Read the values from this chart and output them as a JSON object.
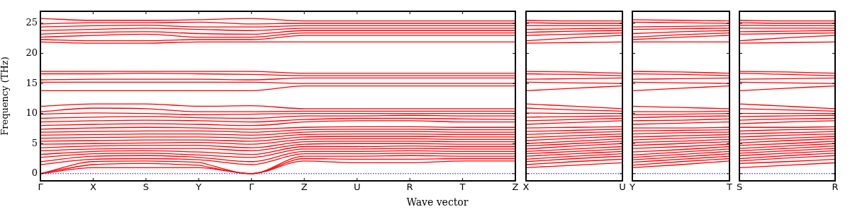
{
  "chart_data": [
    {
      "type": "line",
      "xlabel": "Wave vector",
      "ylabel": "Frequency (THz)",
      "color": "#ff0000",
      "marker": "none",
      "line_style": "solid",
      "grid": false,
      "legend": false,
      "categories": [
        "Γ",
        "X",
        "S",
        "Y",
        "Γ",
        "Z",
        "U",
        "R",
        "T",
        "Z"
      ],
      "ylim": [
        -1.2,
        27
      ],
      "yticks": [
        0,
        5,
        10,
        15,
        20,
        25
      ],
      "ref_lines": [
        {
          "axis": "y",
          "value": 0,
          "color": "#0000ff",
          "line_style": "dotted"
        }
      ],
      "series": [
        {
          "values": [
            0,
            1.0,
            1.0,
            1.0,
            0,
            2.1,
            1.8,
            1.8,
            2.1,
            2.1
          ]
        },
        {
          "values": [
            0,
            1.5,
            1.7,
            1.4,
            null,
            null,
            null,
            null,
            null,
            null
          ]
        },
        {
          "values": [
            null,
            null,
            null,
            1.4,
            0,
            2.5,
            2.4,
            2.4,
            2.5,
            2.5
          ]
        },
        {
          "values": [
            0,
            2.0,
            2.1,
            1.9,
            null,
            null,
            null,
            null,
            null,
            null
          ]
        },
        {
          "values": [
            null,
            null,
            null,
            1.9,
            0,
            2.9,
            2.9,
            3.0,
            2.9,
            2.9
          ]
        },
        {
          "values": [
            1.5,
            2.4,
            2.5,
            2.3,
            1.5,
            3.3,
            3.3,
            3.4,
            3.3,
            3.3
          ]
        },
        {
          "values": [
            2.0,
            2.9,
            3.0,
            2.7,
            2.0,
            3.7,
            3.7,
            3.8,
            3.7,
            3.7
          ]
        },
        {
          "values": [
            2.7,
            3.3,
            3.4,
            3.1,
            2.7,
            4.1,
            4.1,
            4.2,
            4.1,
            4.1
          ]
        },
        {
          "values": [
            3.2,
            3.7,
            3.8,
            3.6,
            3.2,
            4.5,
            4.5,
            4.6,
            4.5,
            4.5
          ]
        },
        {
          "values": [
            3.8,
            4.1,
            4.2,
            4.2,
            3.8,
            4.9,
            5.0,
            5.0,
            4.9,
            4.9
          ]
        },
        {
          "values": [
            4.3,
            4.6,
            4.7,
            4.7,
            4.3,
            5.3,
            5.4,
            5.4,
            5.3,
            5.3
          ]
        },
        {
          "values": [
            4.9,
            5.0,
            5.1,
            5.2,
            4.9,
            5.7,
            5.8,
            5.8,
            5.7,
            5.7
          ]
        },
        {
          "values": [
            5.4,
            5.5,
            5.6,
            5.6,
            5.4,
            6.1,
            6.2,
            6.2,
            6.1,
            6.1
          ]
        },
        {
          "values": [
            5.9,
            6.0,
            6.1,
            6.1,
            5.9,
            6.5,
            6.6,
            6.6,
            6.5,
            6.5
          ]
        },
        {
          "values": [
            6.4,
            6.5,
            6.6,
            6.6,
            6.4,
            6.9,
            7.0,
            7.0,
            6.9,
            6.9
          ]
        },
        {
          "values": [
            6.9,
            7.0,
            7.1,
            7.1,
            6.9,
            7.3,
            7.4,
            7.4,
            7.3,
            7.3
          ]
        },
        {
          "values": [
            7.4,
            7.6,
            7.7,
            7.6,
            7.4,
            7.7,
            7.8,
            7.8,
            7.7,
            7.7
          ]
        },
        {
          "values": [
            8.0,
            8.2,
            8.3,
            8.2,
            8.0,
            8.6,
            8.8,
            8.8,
            8.6,
            8.6
          ]
        },
        {
          "values": [
            8.6,
            8.8,
            8.9,
            8.8,
            8.6,
            9.0,
            9.2,
            9.2,
            9.1,
            9.0
          ]
        },
        {
          "values": [
            9.2,
            9.4,
            9.5,
            9.3,
            9.2,
            9.6,
            9.6,
            9.7,
            9.6,
            9.6
          ]
        },
        {
          "values": [
            9.9,
            10.1,
            10.0,
            9.8,
            9.9,
            10.0,
            10.0,
            10.0,
            10.0,
            10.0
          ]
        },
        {
          "values": [
            10.3,
            10.9,
            10.8,
            10.3,
            10.3,
            10.4,
            10.4,
            10.4,
            10.4,
            10.4
          ]
        },
        {
          "values": [
            11.2,
            11.6,
            11.6,
            11.2,
            11.3,
            10.8,
            10.8,
            10.8,
            10.8,
            10.8
          ]
        },
        {
          "values": [
            13.8,
            13.8,
            13.8,
            13.8,
            13.8,
            14.6,
            14.6,
            14.6,
            14.6,
            14.6
          ]
        },
        {
          "values": [
            15.2,
            15.2,
            15.2,
            15.2,
            15.2,
            15.0,
            15.0,
            15.0,
            15.0,
            15.0
          ]
        },
        {
          "values": [
            15.6,
            15.7,
            15.7,
            15.7,
            15.6,
            15.9,
            15.9,
            15.9,
            15.9,
            15.9
          ]
        },
        {
          "values": [
            16.6,
            16.6,
            16.7,
            16.6,
            16.5,
            16.3,
            16.3,
            16.3,
            16.3,
            16.3
          ]
        },
        {
          "values": [
            17.0,
            17.0,
            17.0,
            17.0,
            17.0,
            16.7,
            16.7,
            16.7,
            16.7,
            16.7
          ]
        },
        {
          "values": [
            21.9,
            21.7,
            21.7,
            21.9,
            21.9,
            21.9,
            21.9,
            21.9,
            21.9,
            21.9
          ]
        },
        {
          "values": [
            22.3,
            22.1,
            22.1,
            22.3,
            22.3,
            23.0,
            23.0,
            23.0,
            23.0,
            23.0
          ]
        },
        {
          "values": [
            22.7,
            23.0,
            23.2,
            22.7,
            22.7,
            23.4,
            23.4,
            23.4,
            23.4,
            23.4
          ]
        },
        {
          "values": [
            23.2,
            23.5,
            23.6,
            23.3,
            23.2,
            23.8,
            23.8,
            23.8,
            23.8,
            23.8
          ]
        },
        {
          "values": [
            23.8,
            24.0,
            24.2,
            24.0,
            23.8,
            24.2,
            24.2,
            24.2,
            24.2,
            24.2
          ]
        },
        {
          "values": [
            24.4,
            24.6,
            24.7,
            24.4,
            24.4,
            24.6,
            24.6,
            24.6,
            24.6,
            24.6
          ]
        },
        {
          "values": [
            24.9,
            25.1,
            25.1,
            25.2,
            24.9,
            25.0,
            25.0,
            25.0,
            25.0,
            25.0
          ]
        },
        {
          "values": [
            25.8,
            25.5,
            25.5,
            25.6,
            25.8,
            25.4,
            25.4,
            25.4,
            25.4,
            25.4
          ]
        }
      ]
    },
    {
      "type": "line",
      "color": "#ff0000",
      "marker": "none",
      "line_style": "solid",
      "grid": false,
      "legend": false,
      "tick_labels": "x",
      "categories": [
        "X",
        null,
        "U"
      ],
      "ylim": [
        -1.2,
        27
      ],
      "yticks": [
        0,
        5,
        10,
        15,
        20,
        25
      ],
      "ref_lines": [
        {
          "axis": "y",
          "value": 0,
          "color": "#0000ff",
          "line_style": "dotted"
        }
      ],
      "series": [
        {
          "values": [
            1.0,
            1.4,
            1.8
          ]
        },
        {
          "values": [
            1.5,
            2.0,
            2.4
          ]
        },
        {
          "values": [
            2.0,
            2.5,
            2.9
          ]
        },
        {
          "values": [
            2.4,
            2.9,
            3.3
          ]
        },
        {
          "values": [
            2.9,
            3.3,
            3.7
          ]
        },
        {
          "values": [
            3.3,
            3.7,
            4.1
          ]
        },
        {
          "values": [
            3.7,
            4.1,
            4.5
          ]
        },
        {
          "values": [
            4.1,
            4.6,
            5.0
          ]
        },
        {
          "values": [
            4.6,
            5.0,
            5.4
          ]
        },
        {
          "values": [
            5.0,
            5.4,
            5.8
          ]
        },
        {
          "values": [
            5.5,
            5.9,
            6.2
          ]
        },
        {
          "values": [
            6.0,
            6.3,
            6.6
          ]
        },
        {
          "values": [
            6.5,
            6.8,
            7.0
          ]
        },
        {
          "values": [
            7.0,
            7.2,
            7.4
          ]
        },
        {
          "values": [
            7.6,
            7.7,
            7.8
          ]
        },
        {
          "values": [
            8.2,
            8.5,
            8.8
          ]
        },
        {
          "values": [
            8.8,
            9.0,
            9.2
          ]
        },
        {
          "values": [
            9.4,
            9.5,
            9.6
          ]
        },
        {
          "values": [
            10.1,
            10.0,
            10.0
          ]
        },
        {
          "values": [
            10.9,
            10.6,
            10.4
          ]
        },
        {
          "values": [
            11.6,
            11.2,
            10.8
          ]
        },
        {
          "values": [
            13.8,
            14.2,
            14.6
          ]
        },
        {
          "values": [
            15.2,
            15.1,
            15.0
          ]
        },
        {
          "values": [
            15.7,
            15.8,
            15.9
          ]
        },
        {
          "values": [
            16.6,
            16.5,
            16.3
          ]
        },
        {
          "values": [
            17.0,
            16.9,
            16.7
          ]
        },
        {
          "values": [
            21.7,
            21.8,
            21.9
          ]
        },
        {
          "values": [
            22.1,
            22.6,
            23.0
          ]
        },
        {
          "values": [
            23.0,
            23.2,
            23.4
          ]
        },
        {
          "values": [
            23.5,
            23.7,
            23.8
          ]
        },
        {
          "values": [
            24.0,
            24.1,
            24.2
          ]
        },
        {
          "values": [
            24.6,
            24.6,
            24.6
          ]
        },
        {
          "values": [
            25.1,
            25.0,
            25.0
          ]
        },
        {
          "values": [
            25.5,
            25.4,
            25.4
          ]
        }
      ]
    },
    {
      "type": "line",
      "color": "#ff0000",
      "marker": "none",
      "line_style": "solid",
      "grid": false,
      "legend": false,
      "tick_labels": "x",
      "categories": [
        "Y",
        null,
        "T"
      ],
      "ylim": [
        -1.2,
        27
      ],
      "yticks": [
        0,
        5,
        10,
        15,
        20,
        25
      ],
      "ref_lines": [
        {
          "axis": "y",
          "value": 0,
          "color": "#0000ff",
          "line_style": "dotted"
        }
      ],
      "series": [
        {
          "values": [
            1.0,
            1.5,
            2.1
          ]
        },
        {
          "values": [
            1.4,
            2.0,
            2.5
          ]
        },
        {
          "values": [
            1.9,
            2.4,
            2.9
          ]
        },
        {
          "values": [
            2.3,
            2.8,
            3.3
          ]
        },
        {
          "values": [
            2.7,
            3.2,
            3.7
          ]
        },
        {
          "values": [
            3.1,
            3.6,
            4.1
          ]
        },
        {
          "values": [
            3.6,
            4.0,
            4.5
          ]
        },
        {
          "values": [
            4.2,
            4.5,
            4.9
          ]
        },
        {
          "values": [
            4.7,
            5.0,
            5.3
          ]
        },
        {
          "values": [
            5.2,
            5.4,
            5.7
          ]
        },
        {
          "values": [
            5.6,
            5.9,
            6.1
          ]
        },
        {
          "values": [
            6.1,
            6.3,
            6.5
          ]
        },
        {
          "values": [
            6.6,
            6.8,
            6.9
          ]
        },
        {
          "values": [
            7.1,
            7.2,
            7.3
          ]
        },
        {
          "values": [
            7.6,
            7.6,
            7.7
          ]
        },
        {
          "values": [
            8.2,
            8.4,
            8.6
          ]
        },
        {
          "values": [
            8.8,
            8.9,
            9.1
          ]
        },
        {
          "values": [
            9.3,
            9.5,
            9.6
          ]
        },
        {
          "values": [
            9.8,
            9.9,
            10.0
          ]
        },
        {
          "values": [
            10.3,
            10.3,
            10.4
          ]
        },
        {
          "values": [
            11.2,
            11.0,
            10.8
          ]
        },
        {
          "values": [
            13.8,
            14.2,
            14.6
          ]
        },
        {
          "values": [
            15.2,
            15.1,
            15.0
          ]
        },
        {
          "values": [
            15.7,
            15.8,
            15.9
          ]
        },
        {
          "values": [
            16.6,
            16.5,
            16.3
          ]
        },
        {
          "values": [
            17.0,
            16.9,
            16.7
          ]
        },
        {
          "values": [
            21.9,
            21.9,
            21.9
          ]
        },
        {
          "values": [
            22.3,
            22.7,
            23.0
          ]
        },
        {
          "values": [
            22.7,
            23.1,
            23.4
          ]
        },
        {
          "values": [
            23.3,
            23.6,
            23.8
          ]
        },
        {
          "values": [
            24.0,
            24.1,
            24.2
          ]
        },
        {
          "values": [
            24.4,
            24.5,
            24.6
          ]
        },
        {
          "values": [
            25.2,
            25.1,
            25.0
          ]
        },
        {
          "values": [
            25.6,
            25.5,
            25.4
          ]
        }
      ]
    },
    {
      "type": "line",
      "color": "#ff0000",
      "marker": "none",
      "line_style": "solid",
      "grid": false,
      "legend": false,
      "tick_labels": "x",
      "categories": [
        "S",
        null,
        "R"
      ],
      "ylim": [
        -1.2,
        27
      ],
      "yticks": [
        0,
        5,
        10,
        15,
        20,
        25
      ],
      "ref_lines": [
        {
          "axis": "y",
          "value": 0,
          "color": "#0000ff",
          "line_style": "dotted"
        }
      ],
      "series": [
        {
          "values": [
            1.0,
            1.4,
            1.8
          ]
        },
        {
          "values": [
            1.7,
            2.0,
            2.4
          ]
        },
        {
          "values": [
            2.1,
            2.6,
            3.0
          ]
        },
        {
          "values": [
            2.5,
            3.0,
            3.4
          ]
        },
        {
          "values": [
            3.0,
            3.4,
            3.8
          ]
        },
        {
          "values": [
            3.4,
            3.8,
            4.2
          ]
        },
        {
          "values": [
            3.8,
            4.2,
            4.6
          ]
        },
        {
          "values": [
            4.2,
            4.6,
            5.0
          ]
        },
        {
          "values": [
            4.7,
            5.0,
            5.4
          ]
        },
        {
          "values": [
            5.1,
            5.5,
            5.8
          ]
        },
        {
          "values": [
            5.6,
            5.9,
            6.2
          ]
        },
        {
          "values": [
            6.1,
            6.4,
            6.6
          ]
        },
        {
          "values": [
            6.6,
            6.8,
            7.0
          ]
        },
        {
          "values": [
            7.1,
            7.3,
            7.4
          ]
        },
        {
          "values": [
            7.7,
            7.7,
            7.8
          ]
        },
        {
          "values": [
            8.3,
            8.6,
            8.8
          ]
        },
        {
          "values": [
            8.9,
            9.1,
            9.2
          ]
        },
        {
          "values": [
            9.5,
            9.6,
            9.7
          ]
        },
        {
          "values": [
            10.0,
            10.0,
            10.0
          ]
        },
        {
          "values": [
            10.8,
            10.6,
            10.4
          ]
        },
        {
          "values": [
            11.6,
            11.2,
            10.8
          ]
        },
        {
          "values": [
            13.8,
            14.2,
            14.6
          ]
        },
        {
          "values": [
            15.2,
            15.1,
            15.0
          ]
        },
        {
          "values": [
            15.7,
            15.8,
            15.9
          ]
        },
        {
          "values": [
            16.7,
            16.5,
            16.3
          ]
        },
        {
          "values": [
            17.0,
            16.9,
            16.7
          ]
        },
        {
          "values": [
            21.7,
            21.8,
            21.9
          ]
        },
        {
          "values": [
            22.1,
            22.6,
            23.0
          ]
        },
        {
          "values": [
            23.2,
            23.3,
            23.4
          ]
        },
        {
          "values": [
            23.6,
            23.7,
            23.8
          ]
        },
        {
          "values": [
            24.2,
            24.2,
            24.2
          ]
        },
        {
          "values": [
            24.7,
            24.6,
            24.6
          ]
        },
        {
          "values": [
            25.1,
            25.0,
            25.0
          ]
        },
        {
          "values": [
            25.5,
            25.4,
            25.4
          ]
        }
      ]
    }
  ]
}
